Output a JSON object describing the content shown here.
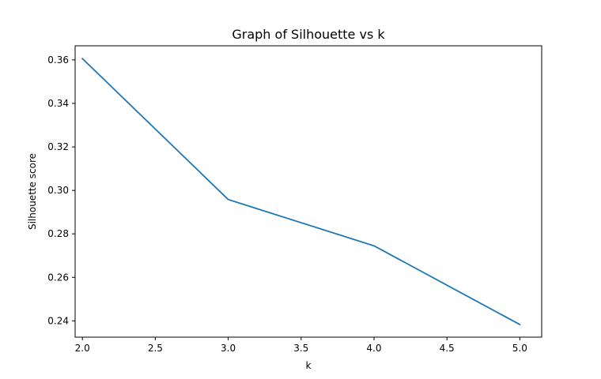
{
  "chart_data": {
    "type": "line",
    "title": "Graph of Silhouette vs k",
    "xlabel": "k",
    "ylabel": "Silhouette score",
    "xlim": [
      1.95,
      5.15
    ],
    "ylim": [
      0.2325,
      0.3665
    ],
    "xticks": [
      "2.0",
      "2.5",
      "3.0",
      "3.5",
      "4.0",
      "4.5",
      "5.0"
    ],
    "yticks": [
      "0.24",
      "0.26",
      "0.28",
      "0.30",
      "0.32",
      "0.34",
      "0.36"
    ],
    "grid": false,
    "series": [
      {
        "color": "#1f77b4",
        "x": [
          2,
          3,
          4,
          5
        ],
        "y": [
          0.3606,
          0.2958,
          0.2745,
          0.2383
        ]
      }
    ]
  }
}
